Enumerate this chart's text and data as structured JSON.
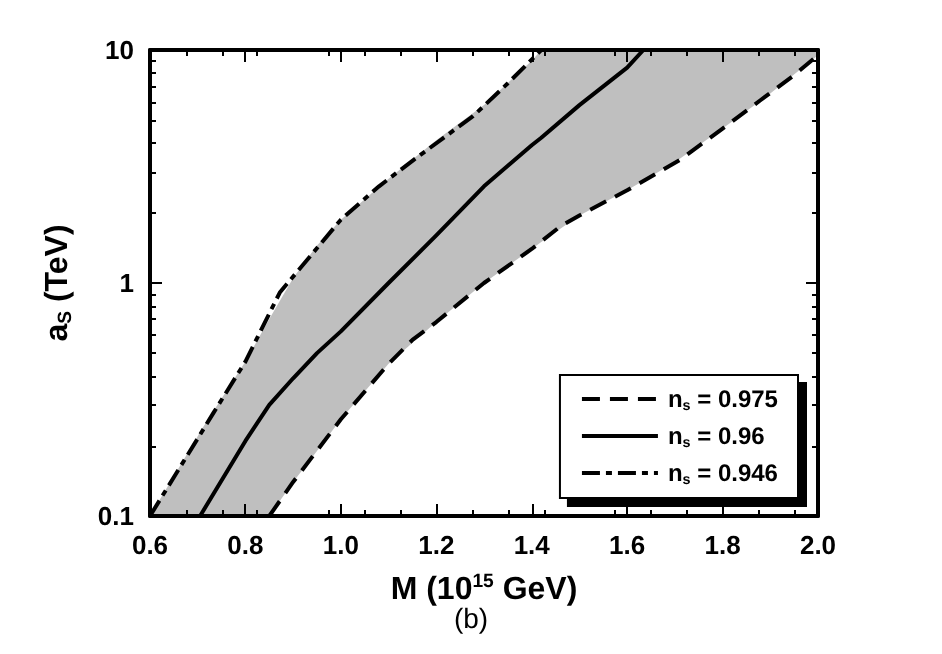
{
  "chart_data": {
    "type": "line",
    "xlabel": "M (10$^{15}$ GeV)",
    "ylabel": "a$_{S}$ (TeV)",
    "annotations": [
      "(b)"
    ],
    "log": "y",
    "xlim": [
      0.6,
      2.0
    ],
    "xticks": [
      0.6,
      0.8,
      {
        "value": 1,
        "label": "1.0"
      },
      1.2,
      1.4,
      1.6,
      1.8,
      {
        "value": 2,
        "label": "2.0"
      }
    ],
    "ylim": [
      0.1,
      10
    ],
    "yticks": [
      0.1,
      1,
      10
    ],
    "grid": false,
    "legend": "bottom right",
    "marker": "none",
    "series": [
      {
        "name": "n$_{s}$ = 0.975",
        "color": "#000000",
        "line_style": "dashed",
        "x": [
          0.85,
          0.9,
          1.0,
          1.1,
          1.15,
          1.2,
          1.3,
          1.4,
          1.46,
          1.5,
          1.6,
          1.71,
          1.8,
          1.88,
          1.95,
          2.0
        ],
        "values": [
          0.1,
          0.14,
          0.26,
          0.45,
          0.57,
          0.68,
          1.0,
          1.4,
          1.75,
          1.95,
          2.5,
          3.37,
          4.6,
          6.1,
          7.8,
          9.5
        ]
      },
      {
        "name": "n$_{s}$ = 0.96",
        "color": "#000000",
        "line_style": "solid",
        "x": [
          0.6,
          0.7,
          0.705,
          0.8,
          0.85,
          0.9,
          0.95,
          1.0,
          1.1,
          1.2,
          1.3,
          1.4,
          1.42,
          1.5,
          1.6,
          1.634,
          1.7,
          1.8,
          1.9,
          2.0
        ],
        "values": [
          null,
          null,
          0.1,
          0.21,
          0.3,
          0.39,
          0.5,
          0.62,
          1.0,
          1.6,
          2.6,
          3.9,
          4.2,
          5.8,
          8.4,
          10,
          null,
          null,
          null,
          null
        ],
        "lower": [
          0.1,
          0.1,
          0.1,
          0.1,
          0.1,
          0.14,
          0.19,
          0.26,
          0.45,
          0.68,
          1.0,
          1.4,
          1.5,
          1.95,
          2.5,
          2.75,
          3.3,
          4.6,
          6.5,
          9.5
        ],
        "upper": [
          0.1,
          0.22,
          0.23,
          0.46,
          0.7,
          1.05,
          1.45,
          1.87,
          2.8,
          4.1,
          5.8,
          9.0,
          10,
          10,
          10,
          10,
          10,
          10,
          10,
          10
        ]
      },
      {
        "name": "n$_{s}$ = 0.946",
        "color": "#000000",
        "line_style": "dashdot",
        "x": [
          0.6,
          0.733,
          0.8,
          0.872,
          1.0,
          1.08,
          1.152,
          1.277,
          1.35,
          1.42
        ],
        "values": [
          0.1,
          0.277,
          0.46,
          0.91,
          1.87,
          2.6,
          3.37,
          5.2,
          7.2,
          10
        ]
      }
    ]
  }
}
